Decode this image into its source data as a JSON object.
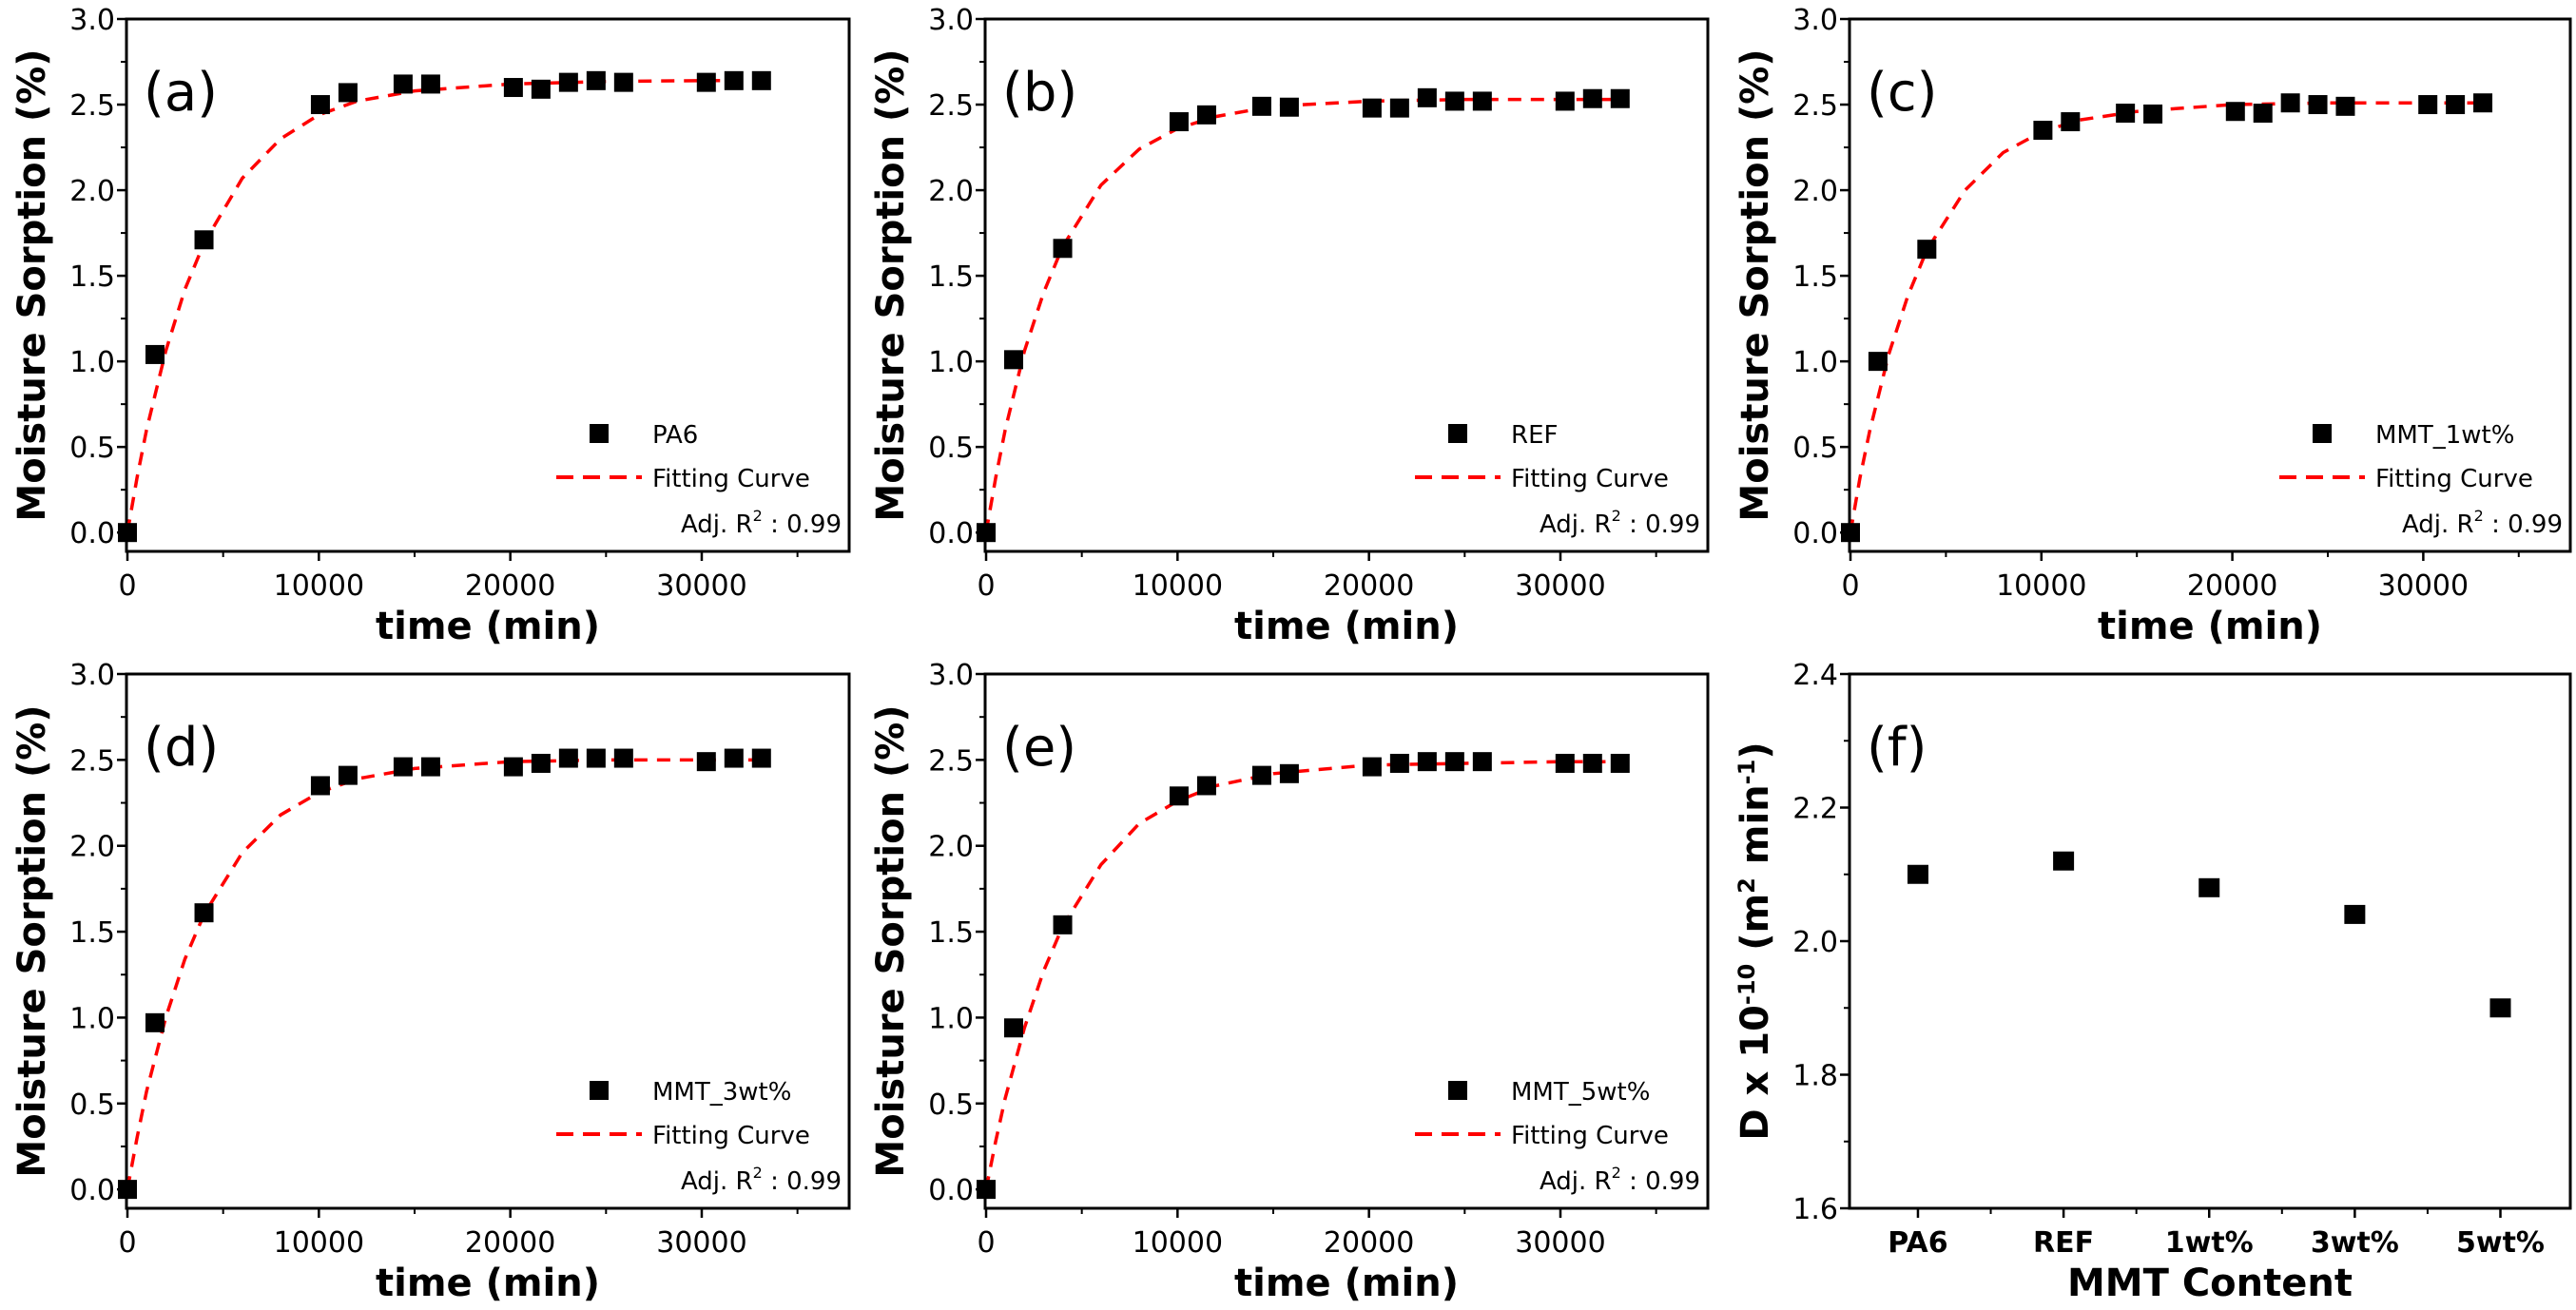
{
  "colors": {
    "marker": "#000000",
    "fit": "#ff0000",
    "axis": "#000000"
  },
  "chart_data": [
    {
      "type": "scatter",
      "panel_label": "(a)",
      "xlabel": "time (min)",
      "ylabel": "Moisture Sorption (%)",
      "xlim": [
        -50,
        37700
      ],
      "ylim": [
        -0.11,
        3.0
      ],
      "xticks": [
        0,
        10000,
        20000,
        30000
      ],
      "yticks": [
        0.0,
        0.5,
        1.0,
        1.5,
        2.0,
        2.5,
        3.0
      ],
      "legend": {
        "marker_label": "PA6",
        "fit_label": "Fitting Curve",
        "r2_prefix": "Adj. R",
        "r2_sup": "2",
        "r2_value": " : 0.99",
        "placement": "bottom-right"
      },
      "x": [
        0,
        1440,
        4000,
        10080,
        11520,
        14400,
        15840,
        20160,
        21600,
        23040,
        24480,
        25920,
        30240,
        31680,
        33120
      ],
      "y": [
        0.0,
        1.04,
        1.71,
        2.5,
        2.57,
        2.62,
        2.62,
        2.6,
        2.59,
        2.63,
        2.64,
        2.63,
        2.63,
        2.64,
        2.64
      ],
      "fit": {
        "x": [
          0,
          500,
          1000,
          2000,
          3000,
          4000,
          6000,
          8000,
          10000,
          12000,
          15000,
          20000,
          25000,
          30000,
          33120
        ],
        "y": [
          0,
          0.32,
          0.6,
          1.06,
          1.42,
          1.69,
          2.07,
          2.3,
          2.44,
          2.52,
          2.58,
          2.62,
          2.635,
          2.64,
          2.64
        ]
      }
    },
    {
      "type": "scatter",
      "panel_label": "(b)",
      "xlabel": "time (min)",
      "ylabel": "Moisture Sorption (%)",
      "xlim": [
        -50,
        37700
      ],
      "ylim": [
        -0.11,
        3.0
      ],
      "xticks": [
        0,
        10000,
        20000,
        30000
      ],
      "yticks": [
        0.0,
        0.5,
        1.0,
        1.5,
        2.0,
        2.5,
        3.0
      ],
      "legend": {
        "marker_label": "REF",
        "fit_label": "Fitting Curve",
        "r2_prefix": "Adj. R",
        "r2_sup": "2",
        "r2_value": " : 0.99",
        "placement": "bottom-right"
      },
      "x": [
        0,
        1440,
        4000,
        10080,
        11520,
        14400,
        15840,
        20160,
        21600,
        23040,
        24480,
        25920,
        30240,
        31680,
        33120
      ],
      "y": [
        0.0,
        1.01,
        1.66,
        2.4,
        2.44,
        2.49,
        2.485,
        2.48,
        2.48,
        2.54,
        2.52,
        2.52,
        2.52,
        2.535,
        2.535
      ],
      "fit": {
        "x": [
          0,
          500,
          1000,
          2000,
          3000,
          4000,
          6000,
          8000,
          10000,
          12000,
          15000,
          20000,
          25000,
          30000,
          33120
        ],
        "y": [
          0,
          0.32,
          0.6,
          1.06,
          1.4,
          1.67,
          2.03,
          2.24,
          2.36,
          2.43,
          2.49,
          2.52,
          2.53,
          2.53,
          2.53
        ]
      }
    },
    {
      "type": "scatter",
      "panel_label": "(c)",
      "xlabel": "time (min)",
      "ylabel": "Moisture Sorption (%)",
      "xlim": [
        -50,
        37700
      ],
      "ylim": [
        -0.11,
        3.0
      ],
      "xticks": [
        0,
        10000,
        20000,
        30000
      ],
      "yticks": [
        0.0,
        0.5,
        1.0,
        1.5,
        2.0,
        2.5,
        3.0
      ],
      "legend": {
        "marker_label": "MMT_1wt%",
        "fit_label": "Fitting Curve",
        "r2_prefix": "Adj. R",
        "r2_sup": "2",
        "r2_value": " : 0.99",
        "placement": "bottom-right"
      },
      "x": [
        0,
        1440,
        4000,
        10080,
        11520,
        14400,
        15840,
        20160,
        21600,
        23040,
        24480,
        25920,
        30240,
        31680,
        33120
      ],
      "y": [
        0.0,
        1.0,
        1.655,
        2.35,
        2.4,
        2.45,
        2.445,
        2.46,
        2.45,
        2.51,
        2.5,
        2.49,
        2.5,
        2.5,
        2.51
      ],
      "fit": {
        "x": [
          0,
          500,
          1000,
          2000,
          3000,
          4000,
          6000,
          8000,
          10000,
          12000,
          15000,
          20000,
          25000,
          30000,
          33120
        ],
        "y": [
          0,
          0.32,
          0.59,
          1.04,
          1.38,
          1.65,
          2.0,
          2.22,
          2.34,
          2.41,
          2.46,
          2.5,
          2.51,
          2.51,
          2.51
        ]
      }
    },
    {
      "type": "scatter",
      "panel_label": "(d)",
      "xlabel": "time (min)",
      "ylabel": "Moisture Sorption (%)",
      "xlim": [
        -50,
        37700
      ],
      "ylim": [
        -0.11,
        3.0
      ],
      "xticks": [
        0,
        10000,
        20000,
        30000
      ],
      "yticks": [
        0.0,
        0.5,
        1.0,
        1.5,
        2.0,
        2.5,
        3.0
      ],
      "legend": {
        "marker_label": "MMT_3wt%",
        "fit_label": "Fitting Curve",
        "r2_prefix": "Adj. R",
        "r2_sup": "2",
        "r2_value": " : 0.99",
        "placement": "bottom-right"
      },
      "x": [
        0,
        1440,
        4000,
        10080,
        11520,
        14400,
        15840,
        20160,
        21600,
        23040,
        24480,
        25920,
        30240,
        31680,
        33120
      ],
      "y": [
        0.0,
        0.97,
        1.61,
        2.35,
        2.41,
        2.46,
        2.46,
        2.46,
        2.48,
        2.51,
        2.51,
        2.51,
        2.49,
        2.51,
        2.51
      ],
      "fit": {
        "x": [
          0,
          500,
          1000,
          2000,
          3000,
          4000,
          6000,
          8000,
          10000,
          12000,
          15000,
          20000,
          25000,
          30000,
          33120
        ],
        "y": [
          0,
          0.3,
          0.57,
          1.0,
          1.34,
          1.6,
          1.96,
          2.18,
          2.31,
          2.39,
          2.45,
          2.49,
          2.5,
          2.5,
          2.5
        ]
      }
    },
    {
      "type": "scatter",
      "panel_label": "(e)",
      "xlabel": "time (min)",
      "ylabel": "Moisture Sorption (%)",
      "xlim": [
        -50,
        37700
      ],
      "ylim": [
        -0.11,
        3.0
      ],
      "xticks": [
        0,
        10000,
        20000,
        30000
      ],
      "yticks": [
        0.0,
        0.5,
        1.0,
        1.5,
        2.0,
        2.5,
        3.0
      ],
      "legend": {
        "marker_label": "MMT_5wt%",
        "fit_label": "Fitting Curve",
        "r2_prefix": "Adj. R",
        "r2_sup": "2",
        "r2_value": " : 0.99",
        "placement": "bottom-right"
      },
      "x": [
        0,
        1440,
        4000,
        10080,
        11520,
        14400,
        15840,
        20160,
        21600,
        23040,
        24480,
        25920,
        30240,
        31680,
        33120
      ],
      "y": [
        0.0,
        0.94,
        1.54,
        2.29,
        2.35,
        2.41,
        2.42,
        2.46,
        2.48,
        2.49,
        2.49,
        2.49,
        2.48,
        2.48,
        2.48
      ],
      "fit": {
        "x": [
          0,
          500,
          1000,
          2000,
          3000,
          4000,
          6000,
          8000,
          10000,
          12000,
          15000,
          20000,
          25000,
          30000,
          33120
        ],
        "y": [
          0,
          0.28,
          0.53,
          0.94,
          1.27,
          1.53,
          1.89,
          2.13,
          2.26,
          2.35,
          2.42,
          2.47,
          2.48,
          2.49,
          2.49
        ]
      }
    },
    {
      "type": "scatter",
      "panel_label": "(f)",
      "xlabel": "MMT Content",
      "ylabel_parts": {
        "a": "D x 10",
        "sup1": "-10",
        "b": " (m",
        "sup2": "2",
        "c": " min",
        "sup3": "-1",
        "d": ")"
      },
      "categories": [
        "PA6",
        "REF",
        "1wt%",
        "3wt%",
        "5wt%"
      ],
      "values": [
        2.1,
        2.12,
        2.08,
        2.04,
        1.9
      ],
      "ylim": [
        1.6,
        2.4
      ],
      "yticks": [
        1.6,
        1.8,
        2.0,
        2.2,
        2.4
      ]
    }
  ]
}
